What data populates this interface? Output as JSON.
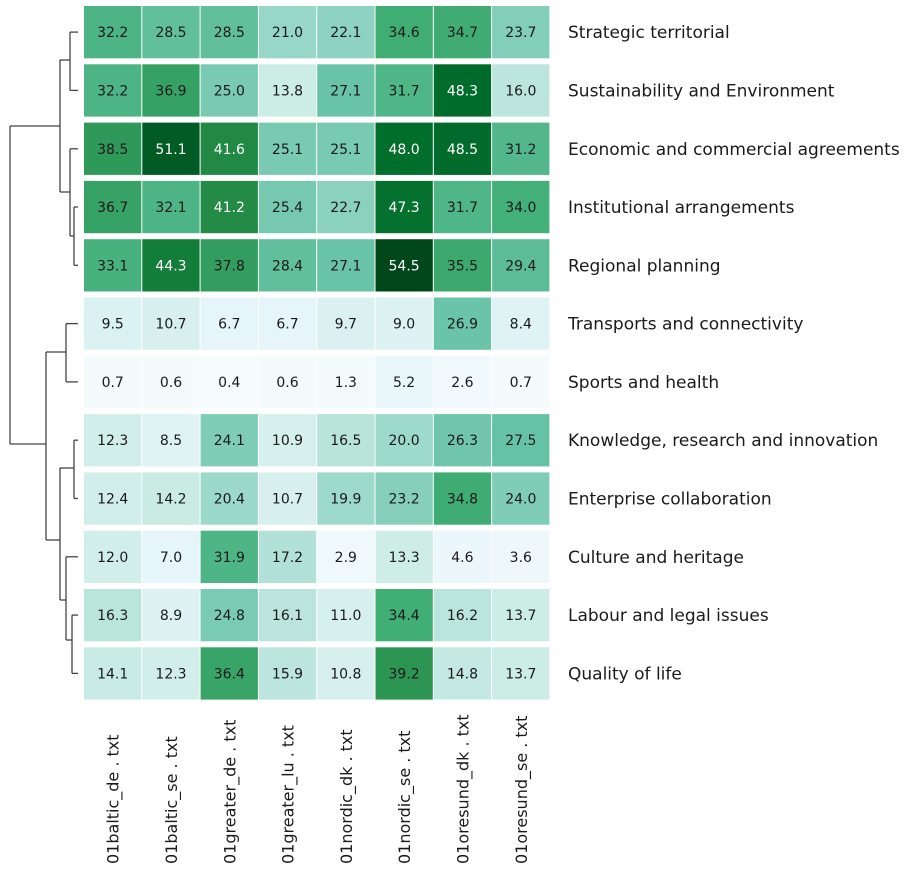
{
  "chart_data": {
    "type": "heatmap",
    "columns": [
      "01baltic_de . txt",
      "01baltic_se . txt",
      "01greater_de . txt",
      "01greater_lu . txt",
      "01nordic_dk . txt",
      "01nordic_se . txt",
      "01oresund_dk . txt",
      "01oresund_se . txt"
    ],
    "rows": [
      "Strategic territorial",
      "Sustainability and Environment",
      "Economic and commercial agreements",
      "Institutional arrangements",
      "Regional planning",
      "Transports and connectivity",
      "Sports and health",
      "Knowledge, research and innovation",
      "Enterprise collaboration",
      "Culture and heritage",
      "Labour and legal issues",
      "Quality of life"
    ],
    "values": [
      [
        32.2,
        28.5,
        28.5,
        21.0,
        22.1,
        34.6,
        34.7,
        23.7
      ],
      [
        32.2,
        36.9,
        25.0,
        13.8,
        27.1,
        31.7,
        48.3,
        16.0
      ],
      [
        38.5,
        51.1,
        41.6,
        25.1,
        25.1,
        48.0,
        48.5,
        31.2
      ],
      [
        36.7,
        32.1,
        41.2,
        25.4,
        22.7,
        47.3,
        31.7,
        34.0
      ],
      [
        33.1,
        44.3,
        37.8,
        28.4,
        27.1,
        54.5,
        35.5,
        29.4
      ],
      [
        9.5,
        10.7,
        6.7,
        6.7,
        9.7,
        9.0,
        26.9,
        8.4
      ],
      [
        0.7,
        0.6,
        0.4,
        0.6,
        1.3,
        5.2,
        2.6,
        0.7
      ],
      [
        12.3,
        8.5,
        24.1,
        10.9,
        16.5,
        20.0,
        26.3,
        27.5
      ],
      [
        12.4,
        14.2,
        20.4,
        10.7,
        19.9,
        23.2,
        34.8,
        24.0
      ],
      [
        12.0,
        7.0,
        31.9,
        17.2,
        2.9,
        13.3,
        4.6,
        3.6
      ],
      [
        16.3,
        8.9,
        24.8,
        16.1,
        11.0,
        34.4,
        16.2,
        13.7
      ],
      [
        14.1,
        12.3,
        36.4,
        15.9,
        10.8,
        39.2,
        14.8,
        13.7
      ]
    ],
    "color_range": [
      0,
      55
    ],
    "colorscale": [
      "#f7fcfd",
      "#e5f5f9",
      "#ccece6",
      "#99d8c9",
      "#66c2a4",
      "#41ae76",
      "#238b45",
      "#006d2c",
      "#00441b"
    ],
    "dendrogram": "rows",
    "legend": "none",
    "grid": false
  }
}
